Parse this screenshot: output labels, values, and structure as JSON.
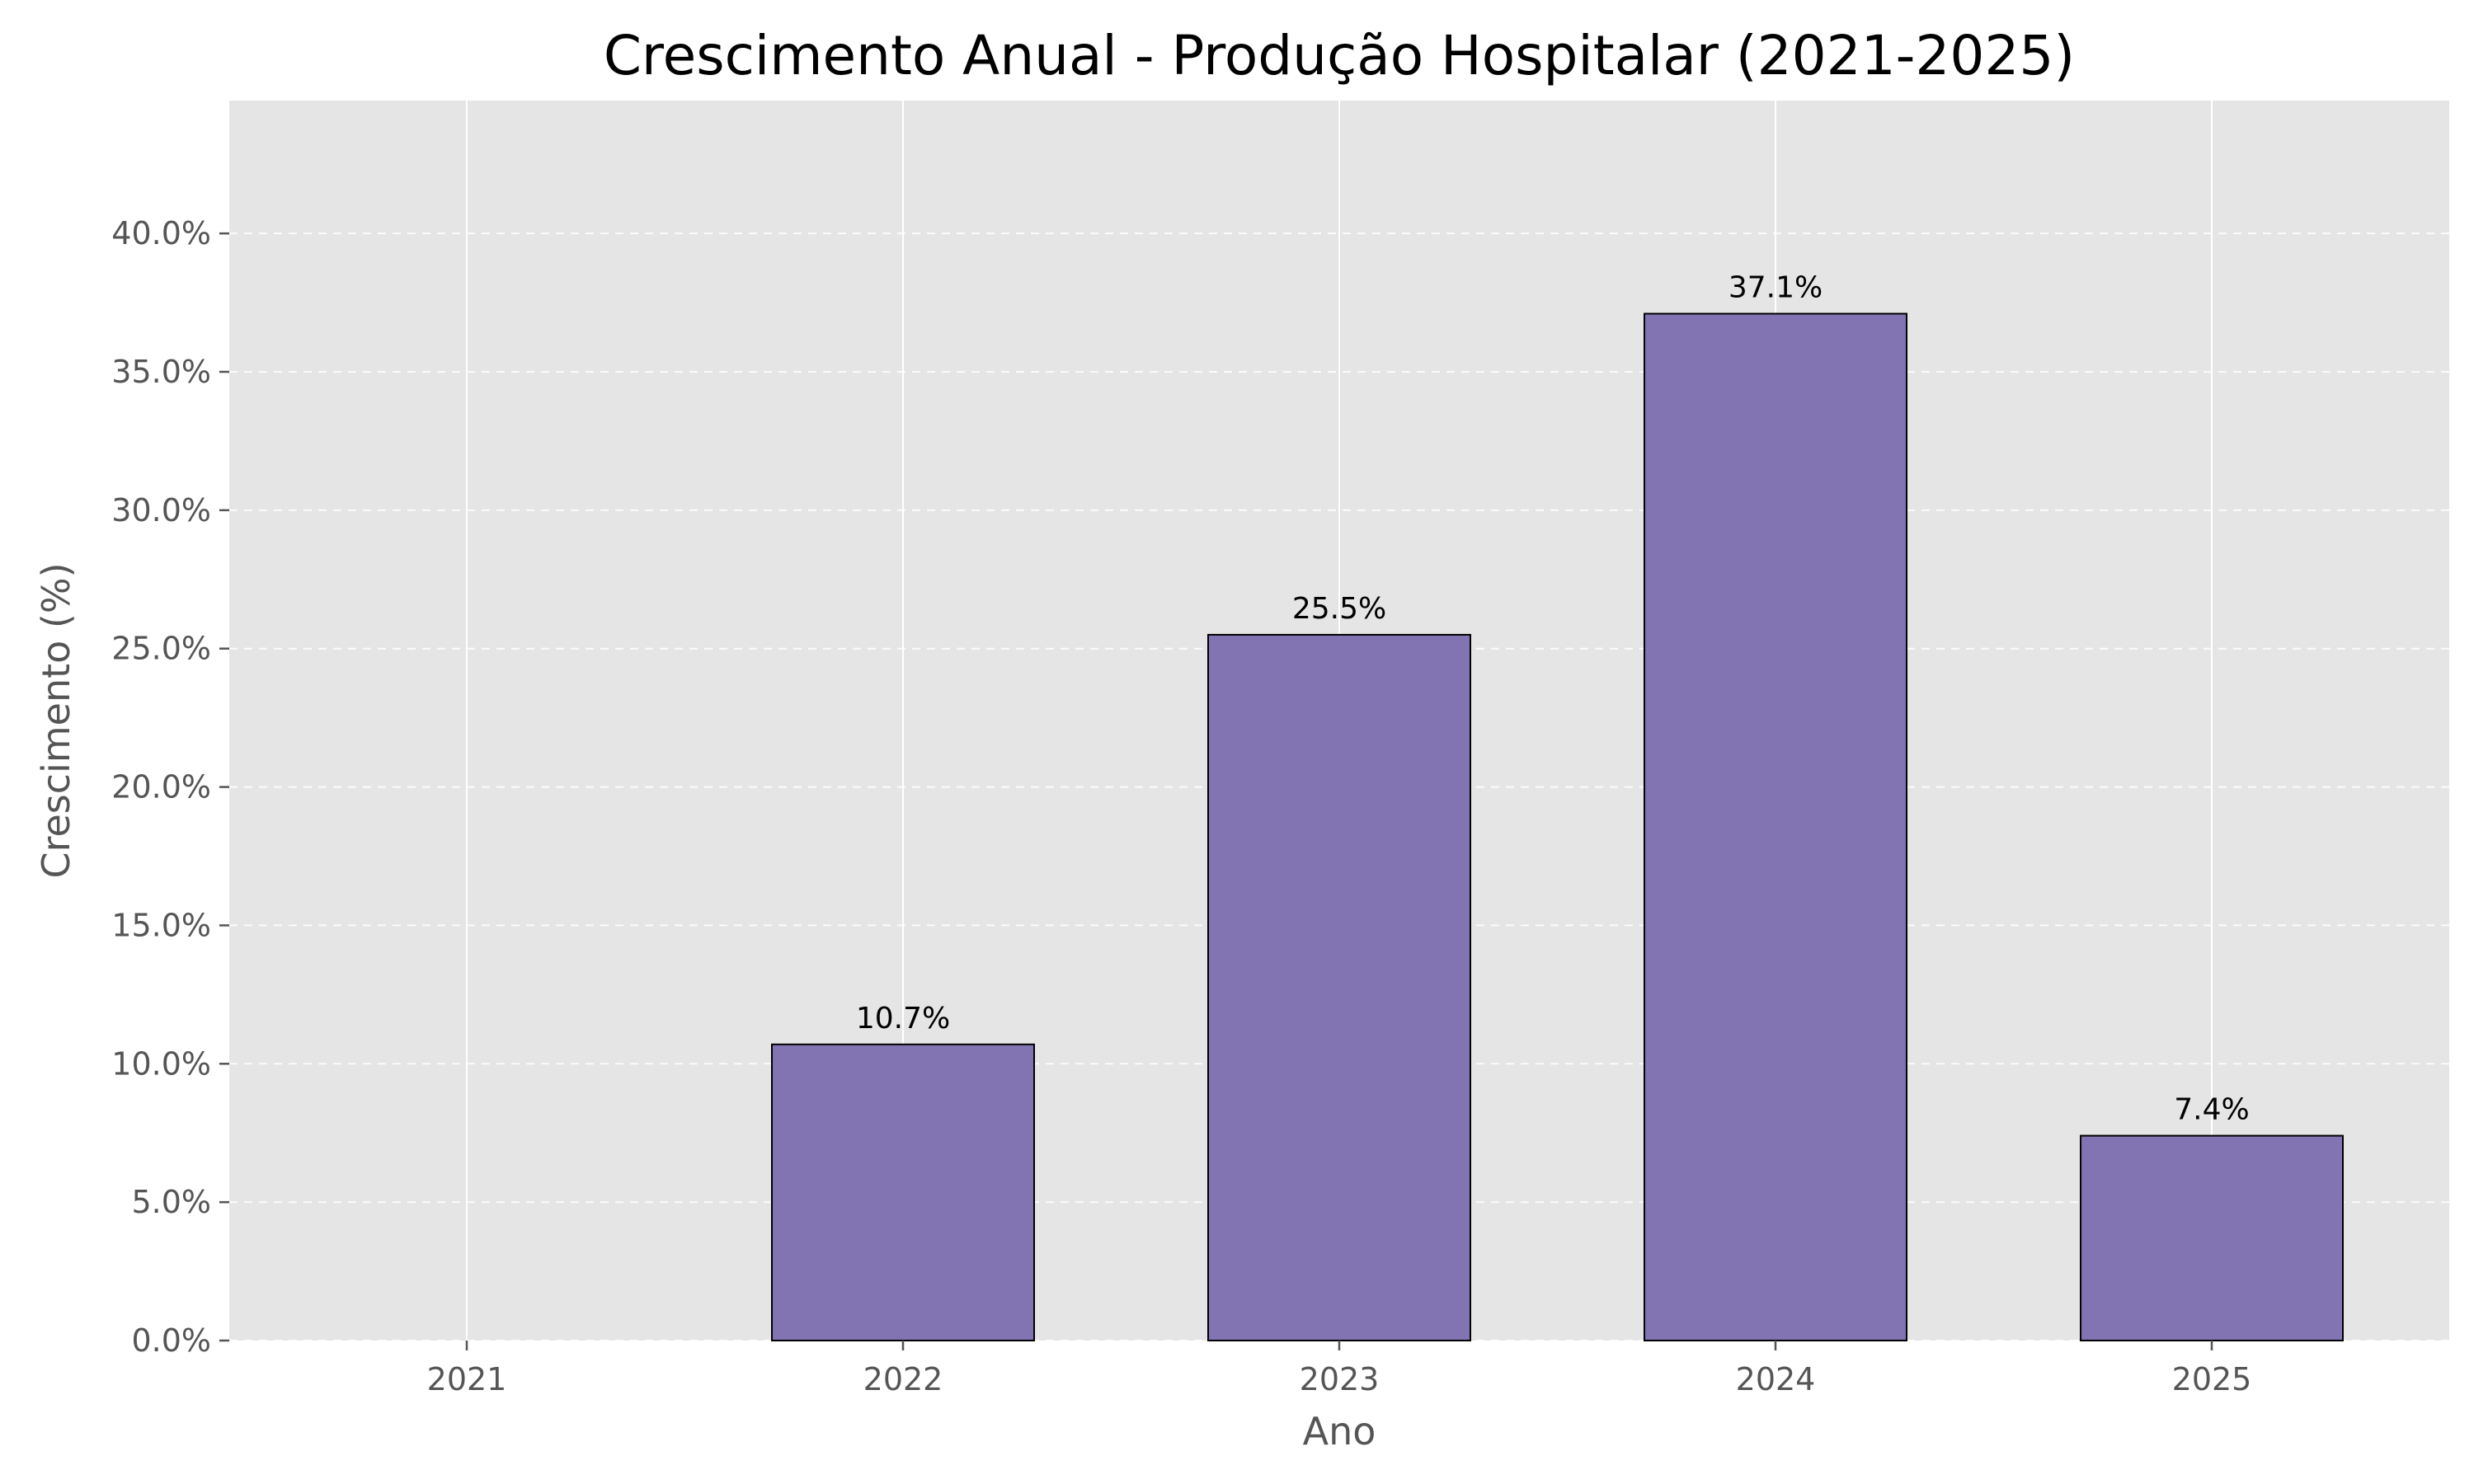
{
  "chart_data": {
    "type": "bar",
    "title": "Crescimento Anual - Produção Hospitalar (2021-2025)",
    "xlabel": "Ano",
    "ylabel": "Crescimento (%)",
    "categories": [
      "2021",
      "2022",
      "2023",
      "2024",
      "2025"
    ],
    "values": [
      0.0,
      10.7,
      25.5,
      37.1,
      7.4
    ],
    "data_labels": [
      "",
      "10.7%",
      "25.5%",
      "37.1%",
      "7.4%"
    ],
    "ylim": [
      0,
      44.8
    ],
    "yticks": [
      0,
      5,
      10,
      15,
      20,
      25,
      30,
      35,
      40
    ],
    "ytick_labels": [
      "0.0%",
      "5.0%",
      "10.0%",
      "15.0%",
      "20.0%",
      "25.0%",
      "30.0%",
      "35.0%",
      "40.0%"
    ],
    "grid": true,
    "y_grid_style": "dashed",
    "colors": {
      "bar": "#8273B3",
      "bar_edge": "#000000",
      "plot_background": "#E5E5E5",
      "grid": "#FFFFFF",
      "tick_text": "#555555"
    }
  }
}
